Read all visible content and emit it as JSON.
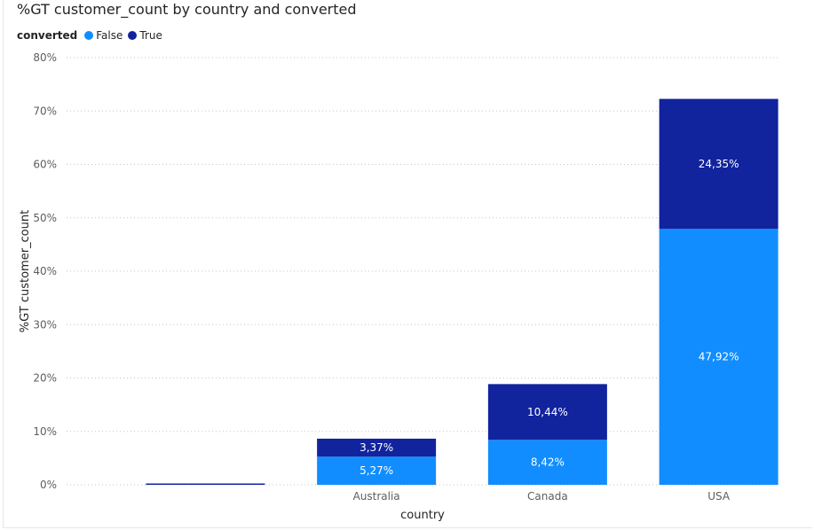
{
  "chart_data": {
    "type": "bar",
    "stacked": true,
    "title": "%GT customer_count by country and converted",
    "xlabel": "country",
    "ylabel": "%GT customer_count",
    "legend": {
      "title": "converted",
      "position": "top-left",
      "entries": [
        "False",
        "True"
      ]
    },
    "categories": [
      "",
      "Australia",
      "Canada",
      "USA"
    ],
    "series": [
      {
        "name": "False",
        "color": "#118dff",
        "values": [
          0.0,
          5.27,
          8.42,
          47.92
        ],
        "labels": [
          "",
          "5,27%",
          "8,42%",
          "47,92%"
        ]
      },
      {
        "name": "True",
        "color": "#12239e",
        "values": [
          0.2,
          3.37,
          10.44,
          24.35
        ],
        "labels": [
          "",
          "3,37%",
          "10,44%",
          "24,35%"
        ]
      }
    ],
    "ylim": [
      0,
      80
    ],
    "yticks": [
      0,
      10,
      20,
      30,
      40,
      50,
      60,
      70,
      80
    ],
    "ytick_labels": [
      "0%",
      "10%",
      "20%",
      "30%",
      "40%",
      "50%",
      "60%",
      "70%",
      "80%"
    ],
    "grid": true
  }
}
